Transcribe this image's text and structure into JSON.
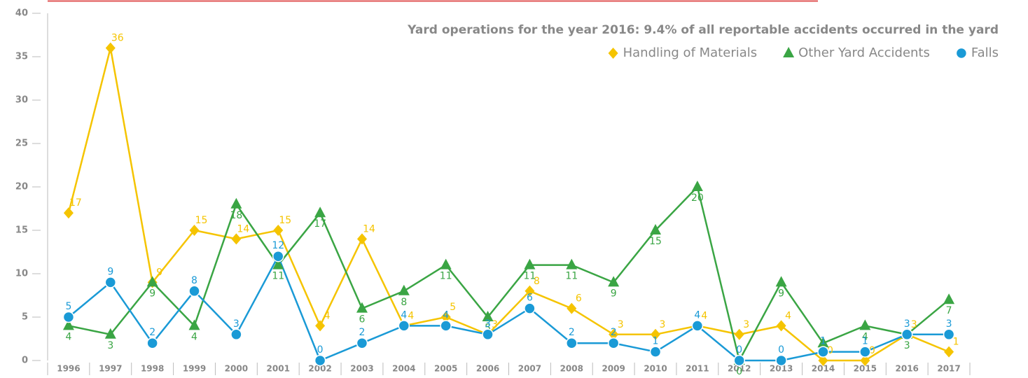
{
  "chart_data": {
    "type": "line",
    "title": "Yard operations for the year 2016: 9.4% of all reportable accidents occurred in the yard",
    "categories": [
      "1996",
      "1997",
      "1998",
      "1999",
      "2000",
      "2001",
      "2002",
      "2003",
      "2004",
      "2005",
      "2006",
      "2007",
      "2008",
      "2009",
      "2010",
      "2011",
      "2012",
      "2013",
      "2014",
      "2015",
      "2016",
      "2017"
    ],
    "series": [
      {
        "name": "Handling of Materials",
        "color": "#f5c400",
        "marker": "diamond",
        "values": [
          17,
          36,
          9,
          15,
          14,
          15,
          4,
          14,
          4,
          5,
          3,
          8,
          6,
          3,
          3,
          4,
          3,
          4,
          0,
          0,
          3,
          1
        ]
      },
      {
        "name": "Other Yard Accidents",
        "color": "#3aa544",
        "marker": "triangle",
        "values": [
          4,
          3,
          9,
          4,
          18,
          11,
          17,
          6,
          8,
          11,
          5,
          11,
          11,
          9,
          15,
          20,
          0,
          9,
          2,
          4,
          3,
          7
        ]
      },
      {
        "name": "Falls",
        "color": "#1a9ad6",
        "marker": "circle",
        "values": [
          5,
          9,
          2,
          8,
          3,
          12,
          0,
          2,
          4,
          4,
          3,
          6,
          2,
          2,
          1,
          4,
          0,
          0,
          1,
          1,
          3,
          3
        ]
      }
    ],
    "ylim": [
      0,
      40
    ],
    "yticks": [
      0,
      5,
      10,
      15,
      20,
      25,
      30,
      35,
      40
    ]
  }
}
